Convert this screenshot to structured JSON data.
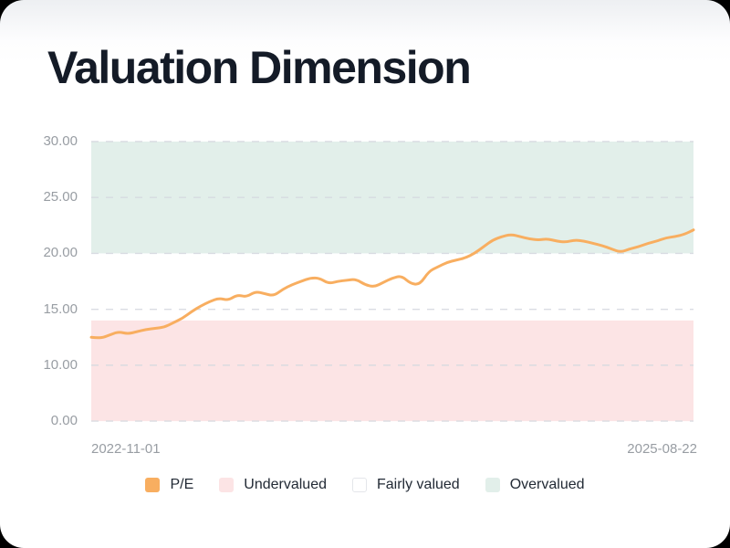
{
  "card": {
    "title": "Valuation Dimension"
  },
  "colors": {
    "line_pe": "#f8ae60",
    "band_undervalued": "#fce4e5",
    "band_fairly_valued": "#ffffff",
    "band_overvalued": "#e2efea",
    "gridline": "#d6d9e0",
    "axis_text": "#989da3",
    "title_text": "#141b27",
    "legend_text": "#222a35"
  },
  "chart_data": {
    "type": "line",
    "title": "Valuation Dimension",
    "x_start_label": "2022-11-01",
    "x_end_label": "2025-08-22",
    "y_tick_labels": [
      "30.00",
      "25.00",
      "20.00",
      "15.00",
      "10.00",
      "0.00"
    ],
    "y_axis_top_value": 30,
    "grid": "horizontal-dashed",
    "legend_position": "bottom-center",
    "bands": [
      {
        "label": "Undervalued",
        "min": null,
        "max": 14.0,
        "color": "#fce4e5"
      },
      {
        "label": "Fairly valued",
        "min": 14.0,
        "max": 20.0,
        "color": "#ffffff"
      },
      {
        "label": "Overvalued",
        "min": 20.0,
        "max": 30.0,
        "color": "#e2efea"
      }
    ],
    "series": [
      {
        "name": "P/E",
        "color": "#f8ae60",
        "values": [
          12.5,
          12.4,
          12.7,
          13.0,
          12.8,
          13.0,
          13.2,
          13.3,
          13.4,
          13.8,
          14.2,
          14.8,
          15.3,
          15.7,
          16.0,
          15.8,
          16.3,
          16.1,
          16.6,
          16.4,
          16.2,
          16.8,
          17.2,
          17.5,
          17.8,
          17.8,
          17.3,
          17.5,
          17.6,
          17.7,
          17.2,
          17.0,
          17.4,
          17.8,
          18.0,
          17.3,
          17.2,
          18.4,
          18.8,
          19.2,
          19.4,
          19.6,
          20.0,
          20.6,
          21.2,
          21.5,
          21.7,
          21.5,
          21.3,
          21.2,
          21.3,
          21.1,
          21.0,
          21.2,
          21.1,
          20.9,
          20.7,
          20.4,
          20.1,
          20.4,
          20.6,
          20.9,
          21.1,
          21.4,
          21.5,
          21.7,
          22.1
        ]
      }
    ]
  },
  "legend": {
    "items": [
      {
        "label": "P/E",
        "swatch": "#f8ae60"
      },
      {
        "label": "Undervalued",
        "swatch": "#fce4e5"
      },
      {
        "label": "Fairly valued",
        "swatch": "#ffffff"
      },
      {
        "label": "Overvalued",
        "swatch": "#e2efea"
      }
    ]
  }
}
